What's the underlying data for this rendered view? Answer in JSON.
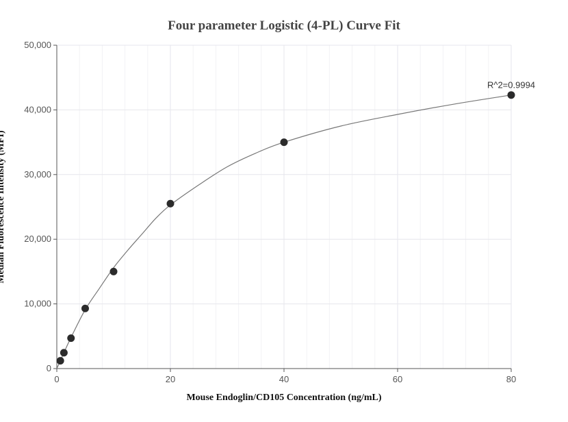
{
  "chart_data": {
    "type": "scatter",
    "title": "Four parameter Logistic (4-PL) Curve Fit",
    "xlabel": "Mouse Endoglin/CD105 Concentration (ng/mL)",
    "ylabel": "Median Fluorescence Intensity (MFI)",
    "xlim": [
      0,
      80
    ],
    "ylim": [
      0,
      50000
    ],
    "x_ticks": [
      0,
      20,
      40,
      60,
      80
    ],
    "x_tick_labels": [
      "0",
      "20",
      "40",
      "60",
      "80"
    ],
    "x_minor_step": 4,
    "y_ticks": [
      0,
      10000,
      20000,
      30000,
      40000,
      50000
    ],
    "y_tick_labels": [
      "0",
      "10,000",
      "20,000",
      "30,000",
      "40,000",
      "50,000"
    ],
    "grid": true,
    "series": [
      {
        "points": [
          {
            "x": 0.625,
            "y": 1200
          },
          {
            "x": 1.25,
            "y": 2450
          },
          {
            "x": 2.5,
            "y": 4700
          },
          {
            "x": 5,
            "y": 9300
          },
          {
            "x": 10,
            "y": 15000
          },
          {
            "x": 20,
            "y": 25500
          },
          {
            "x": 40,
            "y": 35000
          },
          {
            "x": 80,
            "y": 42300
          }
        ],
        "color": "#2b2b2b"
      }
    ],
    "fit": {
      "model": "4PL",
      "color": "#777777",
      "samples": [
        {
          "x": 0,
          "y": 0
        },
        {
          "x": 0.625,
          "y": 1200
        },
        {
          "x": 1.25,
          "y": 2450
        },
        {
          "x": 2.5,
          "y": 4800
        },
        {
          "x": 5,
          "y": 9100
        },
        {
          "x": 7.5,
          "y": 12400
        },
        {
          "x": 10,
          "y": 15600
        },
        {
          "x": 12.5,
          "y": 18300
        },
        {
          "x": 15,
          "y": 20800
        },
        {
          "x": 17.5,
          "y": 23300
        },
        {
          "x": 20,
          "y": 25300
        },
        {
          "x": 25,
          "y": 28400
        },
        {
          "x": 30,
          "y": 31200
        },
        {
          "x": 35,
          "y": 33300
        },
        {
          "x": 40,
          "y": 35000
        },
        {
          "x": 50,
          "y": 37500
        },
        {
          "x": 60,
          "y": 39300
        },
        {
          "x": 70,
          "y": 40900
        },
        {
          "x": 80,
          "y": 42300
        }
      ]
    },
    "annotation": {
      "text": "R^2=0.9994",
      "x": 80,
      "y": 42300
    }
  }
}
